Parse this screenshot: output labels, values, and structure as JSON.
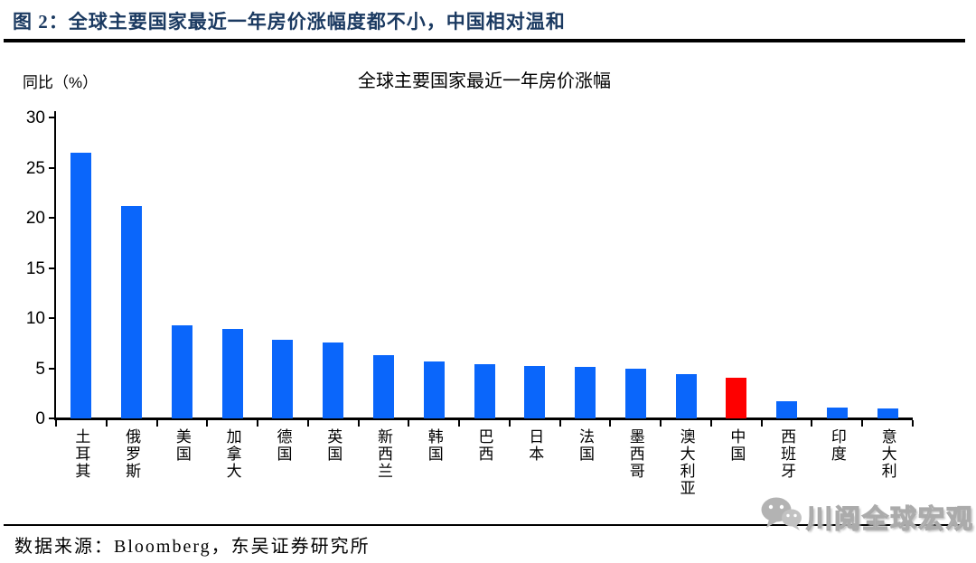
{
  "header": {
    "title": "图 2：全球主要国家最近一年房价涨幅度都不小，中国相对温和"
  },
  "chart_data": {
    "type": "bar",
    "title": "全球主要国家最近一年房价涨幅",
    "ylabel": "同比（%）",
    "categories": [
      "土耳其",
      "俄罗斯",
      "美国",
      "加拿大",
      "德国",
      "英国",
      "新西兰",
      "韩国",
      "巴西",
      "日本",
      "法国",
      "墨西哥",
      "澳大利亚",
      "中国",
      "西班牙",
      "印度",
      "意大利"
    ],
    "values": [
      26.5,
      21.2,
      9.3,
      8.9,
      7.8,
      7.6,
      6.3,
      5.7,
      5.4,
      5.2,
      5.1,
      5.0,
      4.4,
      4.1,
      1.7,
      1.1,
      1.0
    ],
    "highlight_category": "中国",
    "highlight_index": 13,
    "bar_color": "#0a66fb",
    "highlight_color": "#fe0000",
    "ylim": [
      0,
      30
    ],
    "yticks": [
      0,
      5,
      10,
      15,
      20,
      25,
      30
    ],
    "grid": false,
    "legend": false
  },
  "footer": {
    "source": "数据来源：Bloomberg，东吴证券研究所",
    "watermark": {
      "label": "川阅全球宏观",
      "icon": "wechat-icon"
    }
  }
}
